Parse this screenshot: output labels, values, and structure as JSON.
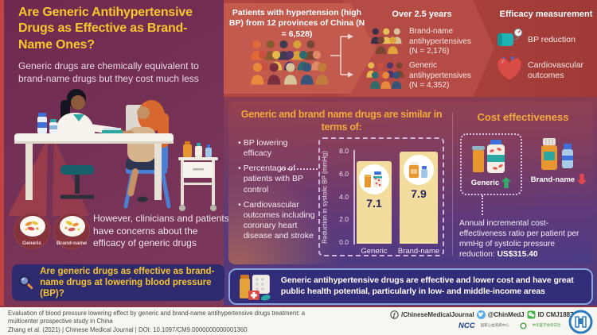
{
  "title": "Are Generic Antihypertensive Drugs as Effective as Brand-Name Ones?",
  "subtitle": "Generic drugs are chemically equivalent to brand-name drugs but they cost much less",
  "pills": {
    "generic": "Generic",
    "brand": "Brand-name"
  },
  "concern": "However, clinicians and patients have concerns about the efficacy of generic drugs",
  "question": "Are generic drugs as effective as brand-name drugs at lowering blood pressure (BP)?",
  "cohort": {
    "label": "Patients with hypertension (high BP) from 12 provinces of China (N = 6,528)",
    "duration": "Over 2.5 years",
    "groups": [
      {
        "label": "Brand-name antihypertensives",
        "n": "(N = 2,176)"
      },
      {
        "label": "Generic antihypertensives",
        "n": "(N = 4,352)"
      }
    ]
  },
  "efficacy": {
    "heading": "Efficacy measurement",
    "items": [
      {
        "label": "BP reduction"
      },
      {
        "label": "Cardiovascular outcomes"
      }
    ]
  },
  "similarity": {
    "heading": "Generic and brand name drugs are similar in terms of:",
    "bullets": [
      "BP lowering efficacy",
      "Percentage of patients with BP control",
      "Cardiovascular outcomes including coronary heart disease and stroke"
    ]
  },
  "chart_data": {
    "type": "bar",
    "categories": [
      "Generic",
      "Brand-name"
    ],
    "values": [
      7.1,
      7.9
    ],
    "ylabel": "Reduction in systolic BP (mmHg)",
    "ylim": [
      0,
      8
    ],
    "yticks": [
      0,
      2,
      4,
      6,
      8
    ],
    "bar_color": "#f3dd9e",
    "grid": false,
    "legend": false
  },
  "cost": {
    "heading": "Cost effectiveness",
    "generic_label": "Generic",
    "brand_label": "Brand-name",
    "note_prefix": "Annual incremental cost-effectiveness ratio per patient per mmHg of systolic pressure reduction: ",
    "note_value": "US$315.40"
  },
  "conclusion": "Generic antihypertensive drugs are effective and lower cost and have great public health potential, particularly in low- and middle-income areas",
  "footer": {
    "citation_title": "Evaluation of blood pressure lowering effect by generic and brand-name antihypertensive drugs treatment: a multicenter prospective study in China",
    "citation_meta": "Zhang et al. (2021)  |  Chinese Medical Journal  |  DOI: 10.1097/CM9.0000000000001360",
    "facebook": "/ChineseMedicalJournal",
    "twitter": "@ChinMedJ",
    "wechat": "ID CMJ1887",
    "org_ncc": "NCC",
    "org_ncc_cn": "国家心血管病中心",
    "org_cma_cn": "中华医学会杂志社"
  },
  "colors": {
    "accent_yellow": "#f8c72e",
    "accent_orange": "#f3aa3d",
    "navy": "#2e2a6e",
    "banner_navy": "#312d78",
    "band_red": "#ad423d",
    "bar_fill": "#f3dd9e",
    "up_green": "#2fae6e",
    "down_red": "#e2484f"
  }
}
